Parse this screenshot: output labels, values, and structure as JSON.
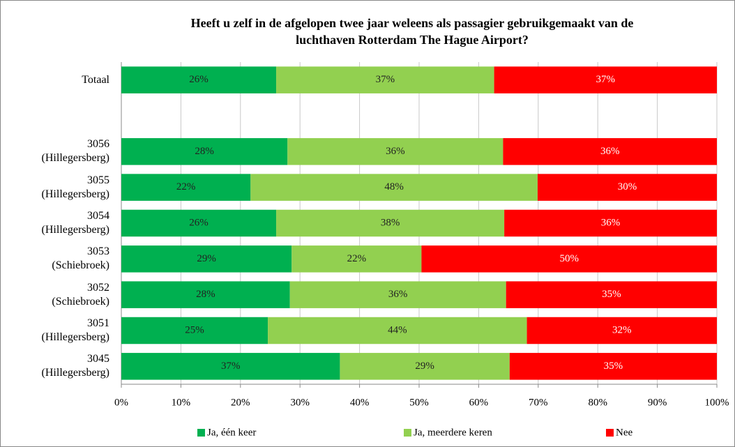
{
  "chart_data": {
    "type": "stacked-bar-horizontal",
    "title": "Heeft u zelf in de afgelopen twee jaar weleens als passagier gebruikgemaakt van de\nluchthaven Rotterdam The Hague Airport?",
    "categories": [
      "Totaal",
      null,
      "3056\n(Hillegersberg)",
      "3055\n(Hillegersberg)",
      "3054\n(Hillegersberg)",
      "3053\n(Schiebroek)",
      "3052\n(Schiebroek)",
      "3051\n(Hillegersberg)",
      "3045\n(Hillegersberg)"
    ],
    "series": [
      {
        "name": "Ja, één keer",
        "color": "#00b050",
        "values": [
          26.0,
          null,
          27.9,
          21.7,
          26.0,
          28.6,
          28.3,
          24.6,
          36.7
        ],
        "value_labels": [
          "26%",
          null,
          "28%",
          "22%",
          "26%",
          "29%",
          "28%",
          "25%",
          "37%"
        ]
      },
      {
        "name": "Ja, meerdere keren",
        "color": "#92d050",
        "values": [
          36.6,
          null,
          36.2,
          48.2,
          38.3,
          21.8,
          36.3,
          43.5,
          28.5
        ],
        "value_labels": [
          "37%",
          null,
          "36%",
          "48%",
          "38%",
          "22%",
          "36%",
          "44%",
          "29%"
        ]
      },
      {
        "name": "Nee",
        "color": "#ff0000",
        "values": [
          37.4,
          null,
          35.9,
          30.1,
          35.7,
          49.6,
          35.4,
          31.9,
          34.8
        ],
        "value_labels": [
          "37%",
          null,
          "36%",
          "30%",
          "36%",
          "50%",
          "35%",
          "32%",
          "35%"
        ]
      }
    ],
    "xlim": [
      0,
      100
    ],
    "xticks": [
      {
        "value": 0,
        "label": "0%"
      },
      {
        "value": 10,
        "label": "10%"
      },
      {
        "value": 20,
        "label": "20%"
      },
      {
        "value": 30,
        "label": "30%"
      },
      {
        "value": 40,
        "label": "40%"
      },
      {
        "value": 50,
        "label": "50%"
      },
      {
        "value": 60,
        "label": "60%"
      },
      {
        "value": 70,
        "label": "70%"
      },
      {
        "value": 80,
        "label": "80%"
      },
      {
        "value": 90,
        "label": "90%"
      },
      {
        "value": 100,
        "label": "100%"
      }
    ],
    "grid": true,
    "legend": "bottom"
  }
}
